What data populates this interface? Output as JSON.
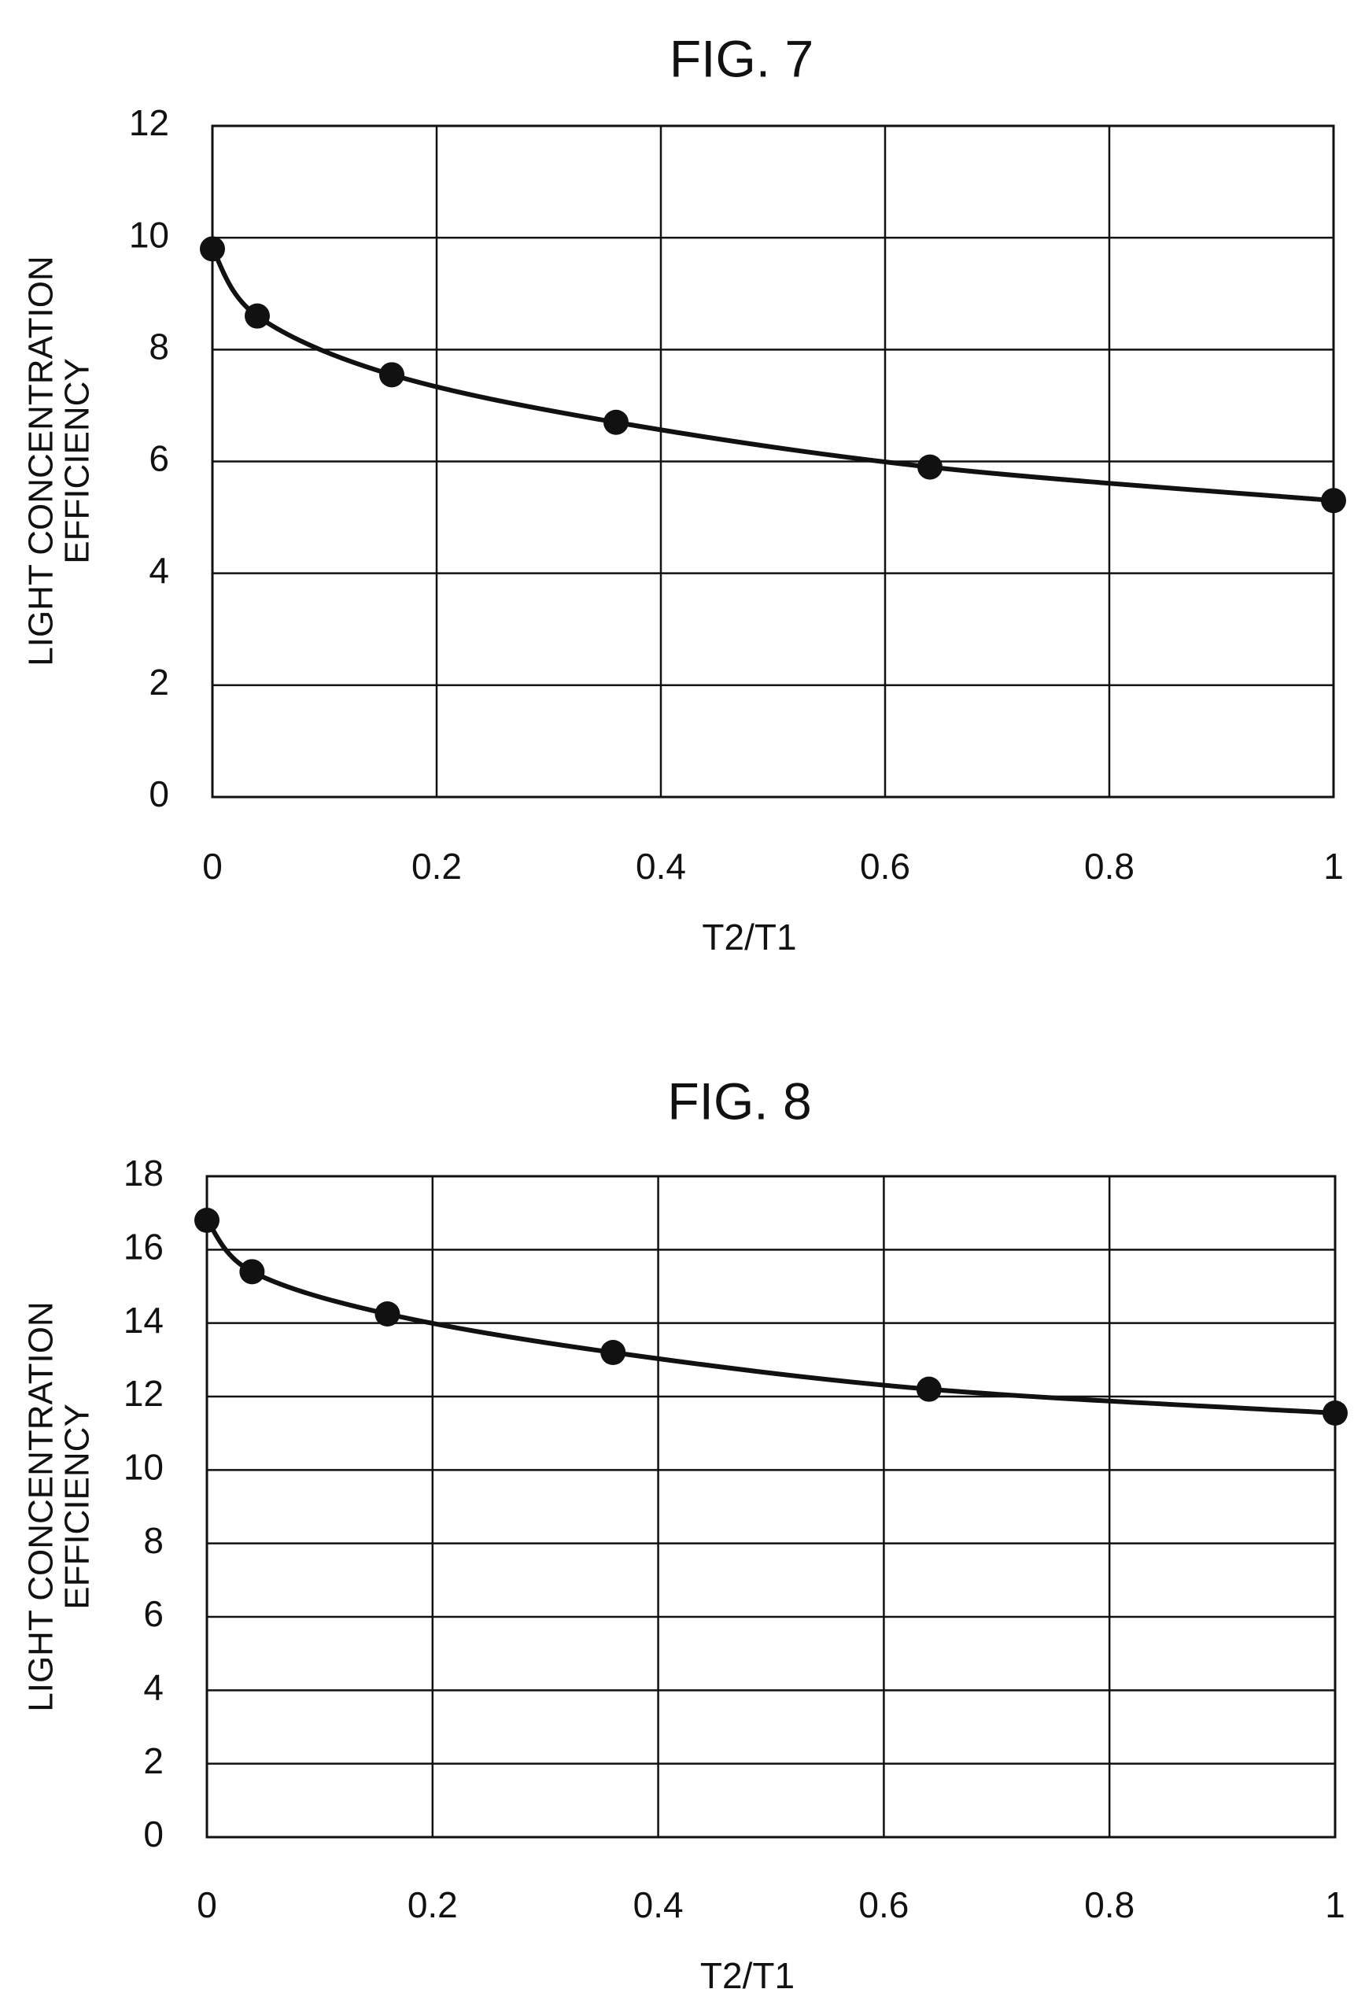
{
  "chart_data": [
    {
      "type": "line",
      "title": "FIG. 7",
      "xlabel": "T2/T1",
      "ylabel_lines": [
        "LIGHT CONCENTRATION",
        "EFFICIENCY"
      ],
      "xlim": [
        0,
        1
      ],
      "ylim": [
        0,
        12
      ],
      "x_ticks": [
        0,
        0.2,
        0.4,
        0.6,
        0.8,
        1
      ],
      "x_tick_labels": [
        "0",
        "0.2",
        "0.4",
        "0.6",
        "0.8",
        "1"
      ],
      "y_ticks": [
        0,
        2,
        4,
        6,
        8,
        10,
        12
      ],
      "y_tick_labels": [
        "0",
        "2",
        "4",
        "6",
        "8",
        "10",
        "12"
      ],
      "grid": true,
      "series": [
        {
          "x": [
            0,
            0.04,
            0.16,
            0.36,
            0.64,
            1
          ],
          "y": [
            9.8,
            8.6,
            7.55,
            6.7,
            5.9,
            5.3
          ]
        }
      ]
    },
    {
      "type": "line",
      "title": "FIG. 8",
      "xlabel": "T2/T1",
      "ylabel_lines": [
        "LIGHT CONCENTRATION",
        "EFFICIENCY"
      ],
      "xlim": [
        0,
        1
      ],
      "ylim": [
        0,
        18
      ],
      "x_ticks": [
        0,
        0.2,
        0.4,
        0.6,
        0.8,
        1
      ],
      "x_tick_labels": [
        "0",
        "0.2",
        "0.4",
        "0.6",
        "0.8",
        "1"
      ],
      "y_ticks": [
        0,
        2,
        4,
        6,
        8,
        10,
        12,
        14,
        16,
        18
      ],
      "y_tick_labels": [
        "0",
        "2",
        "4",
        "6",
        "8",
        "10",
        "12",
        "14",
        "16",
        "18"
      ],
      "grid": true,
      "series": [
        {
          "x": [
            0,
            0.04,
            0.16,
            0.36,
            0.64,
            1
          ],
          "y": [
            16.8,
            15.4,
            14.25,
            13.2,
            12.2,
            11.55
          ]
        }
      ]
    }
  ]
}
